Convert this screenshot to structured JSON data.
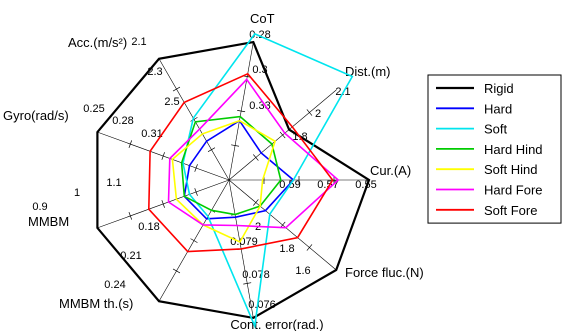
{
  "chart_data": {
    "type": "radar",
    "axes": [
      {
        "label": "CoT",
        "ticks": [
          "0.28",
          "0.3",
          "0.33"
        ]
      },
      {
        "label": "Dist.(m)",
        "ticks": [
          "2.1",
          "2",
          "1.8"
        ]
      },
      {
        "label": "Cur.(A)",
        "ticks": [
          "0.55",
          "0.57",
          "0.59"
        ]
      },
      {
        "label": "Force fluc.(N)",
        "ticks": [
          "1.6",
          "1.8",
          "2"
        ]
      },
      {
        "label": "Cont. error(rad.)",
        "ticks": [
          "0.076",
          "0.078",
          "0.079"
        ]
      },
      {
        "label": "MMBM th.(s)",
        "ticks": [
          "0.24",
          "0.21",
          "0.18"
        ]
      },
      {
        "label": "MMBM",
        "ticks": [
          "0.9",
          "1",
          "1.1"
        ]
      },
      {
        "label": "Gyro(rad/s)",
        "ticks": [
          "0.25",
          "0.28",
          "0.31"
        ]
      },
      {
        "label": "Acc.(m/s²)",
        "ticks": [
          "2.1",
          "2.3",
          "2.5"
        ]
      }
    ],
    "rlim": [
      0,
      1
    ],
    "scale_note": "each axis is inverted: outer ring is the best value, center the worst",
    "series": [
      {
        "name": "Rigid",
        "color": "#000000",
        "values": [
          1,
          0.56,
          1,
          1,
          1,
          1,
          1,
          1,
          1
        ]
      },
      {
        "name": "Hard",
        "color": "#0000ff",
        "values": [
          0.43,
          0.3,
          0.46,
          0.34,
          0.27,
          0.32,
          0.34,
          0.3,
          0.32
        ]
      },
      {
        "name": "Soft",
        "color": "#00e5ee",
        "values": [
          1.06,
          1.15,
          0.46,
          0.38,
          1.06,
          0.3,
          0.3,
          0.35,
          0.51
        ]
      },
      {
        "name": "Hard Hind",
        "color": "#00cc00",
        "values": [
          0.46,
          0.4,
          0.37,
          0.29,
          0.25,
          0.25,
          0.34,
          0.36,
          0.48
        ]
      },
      {
        "name": "Soft Hind",
        "color": "#ffff00",
        "values": [
          0.43,
          0.43,
          0.24,
          0.29,
          0.45,
          0.37,
          0.4,
          0.43,
          0.38
        ]
      },
      {
        "name": "Hard Fore",
        "color": "#ff00ff",
        "values": [
          0.73,
          0.52,
          0.78,
          0.53,
          0.33,
          0.37,
          0.46,
          0.45,
          0.42
        ]
      },
      {
        "name": "Soft Fore",
        "color": "#ff0000",
        "values": [
          0.77,
          0.59,
          0.74,
          0.64,
          0.5,
          0.59,
          0.61,
          0.6,
          0.64
        ]
      }
    ],
    "grid": true,
    "legend_position": "right"
  }
}
